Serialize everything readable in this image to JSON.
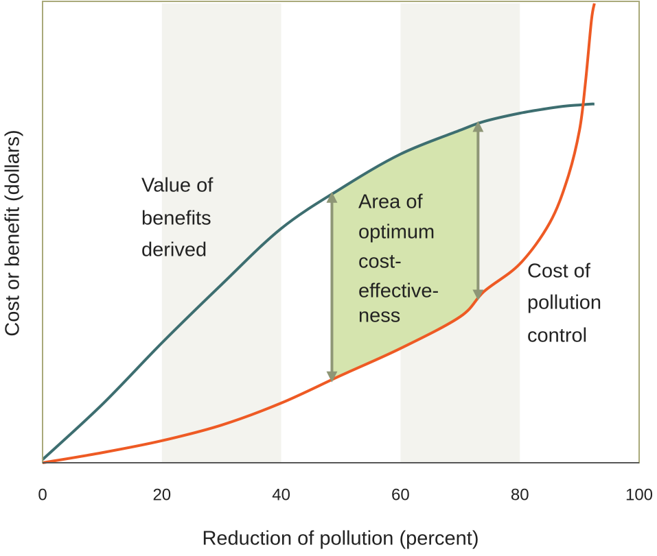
{
  "chart_data": {
    "type": "line",
    "x_label": "Reduction of pollution (percent)",
    "y_label": "Cost or benefit (dollars)",
    "x": [
      0,
      10,
      20,
      30,
      40,
      50,
      60,
      70,
      74,
      80,
      85,
      88,
      90,
      91,
      92,
      92.5
    ],
    "series": [
      {
        "name": "Value of benefits derived",
        "color": "#3d6e70",
        "values": [
          0.7,
          12.7,
          26.1,
          38.8,
          51.0,
          59.7,
          67.2,
          72.4,
          74.3,
          76.1,
          77.2,
          77.7,
          77.9,
          78.0,
          78.1,
          78.1
        ]
      },
      {
        "name": "Cost of pollution control",
        "color": "#ee5a24",
        "values": [
          0,
          2.2,
          4.8,
          8.2,
          13.0,
          19.0,
          24.9,
          31.8,
          37.3,
          43.3,
          52.2,
          61.9,
          72.4,
          82.8,
          96.3,
          100
        ]
      }
    ],
    "annotations": [
      {
        "lines": [
          "Value of",
          "benefits",
          "derived"
        ]
      },
      {
        "lines": [
          "Area of",
          "optimum",
          "cost-",
          "effective-",
          "ness"
        ]
      },
      {
        "lines": [
          "Cost of",
          "pollution",
          "control"
        ]
      }
    ],
    "bands": [
      [
        20,
        40
      ],
      [
        60,
        80
      ]
    ],
    "optimum_range": [
      48.5,
      73
    ],
    "xlim": [
      0,
      100
    ],
    "xticks": [
      0,
      20,
      40,
      60,
      80,
      100
    ],
    "ylim": [
      0,
      100
    ],
    "grid": false
  }
}
